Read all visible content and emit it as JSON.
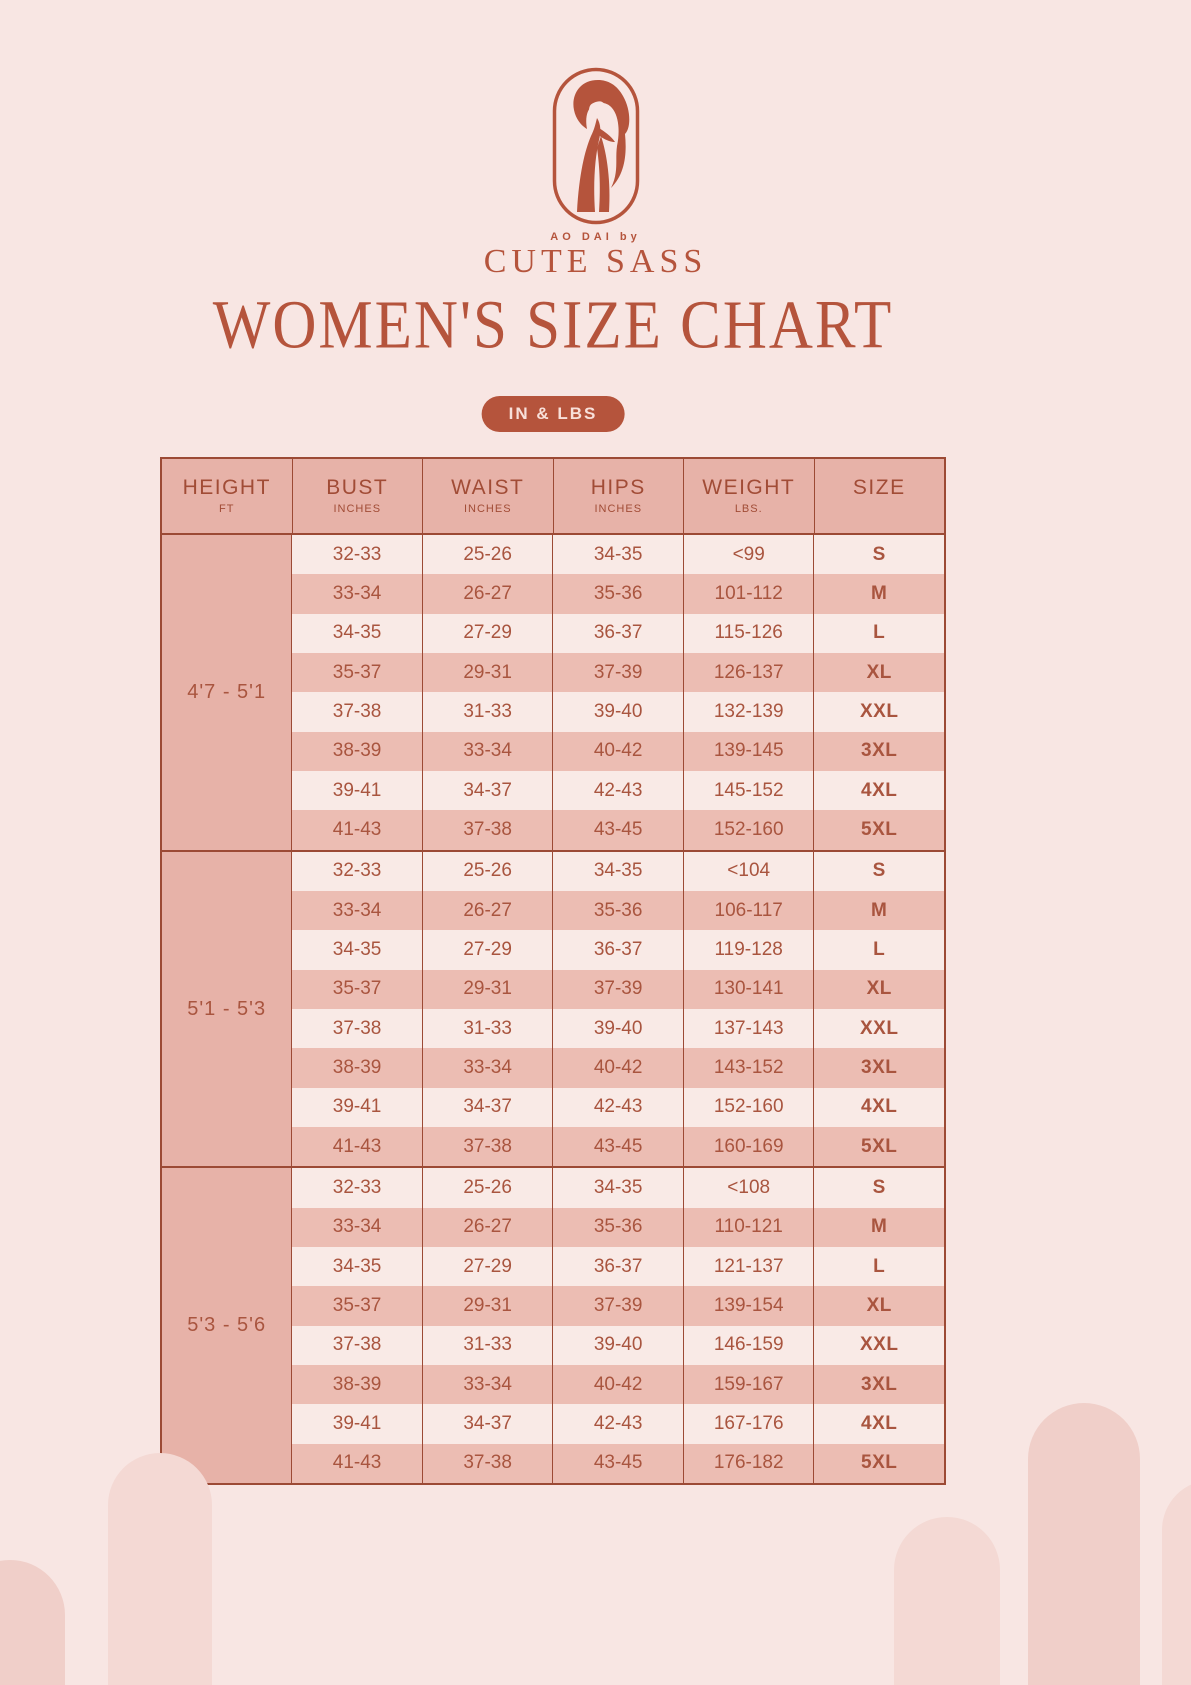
{
  "theme": {
    "background": "#f8e6e3",
    "accent": "#b5543c",
    "title_color": "#b5543c",
    "badge_bg": "#b5543c",
    "badge_text": "#f8e0da",
    "table_border": "#9c4a35",
    "header_bg": "#e7b2a8",
    "header_text": "#a14c36",
    "row_light_bg": "#f9eae6",
    "row_dark_bg": "#ecbdb3",
    "table_text": "#a9553f",
    "arch_light": "#f4d9d4",
    "arch_dark": "#f0cfc9"
  },
  "brand": {
    "tagline": "AO DAI by",
    "name": "CUTE SASS"
  },
  "title": "WOMEN'S SIZE CHART",
  "units_badge": "IN & LBS",
  "table": {
    "columns": [
      {
        "label": "HEIGHT",
        "sublabel": "FT"
      },
      {
        "label": "BUST",
        "sublabel": "INCHES"
      },
      {
        "label": "WAIST",
        "sublabel": "INCHES"
      },
      {
        "label": "HIPS",
        "sublabel": "INCHES"
      },
      {
        "label": "WEIGHT",
        "sublabel": "LBS."
      },
      {
        "label": "SIZE",
        "sublabel": ""
      }
    ],
    "sections": [
      {
        "height": "4'7 - 5'1",
        "rows": [
          [
            "32-33",
            "25-26",
            "34-35",
            "<99",
            "S"
          ],
          [
            "33-34",
            "26-27",
            "35-36",
            "101-112",
            "M"
          ],
          [
            "34-35",
            "27-29",
            "36-37",
            "115-126",
            "L"
          ],
          [
            "35-37",
            "29-31",
            "37-39",
            "126-137",
            "XL"
          ],
          [
            "37-38",
            "31-33",
            "39-40",
            "132-139",
            "XXL"
          ],
          [
            "38-39",
            "33-34",
            "40-42",
            "139-145",
            "3XL"
          ],
          [
            "39-41",
            "34-37",
            "42-43",
            "145-152",
            "4XL"
          ],
          [
            "41-43",
            "37-38",
            "43-45",
            "152-160",
            "5XL"
          ]
        ]
      },
      {
        "height": "5'1 - 5'3",
        "rows": [
          [
            "32-33",
            "25-26",
            "34-35",
            "<104",
            "S"
          ],
          [
            "33-34",
            "26-27",
            "35-36",
            "106-117",
            "M"
          ],
          [
            "34-35",
            "27-29",
            "36-37",
            "119-128",
            "L"
          ],
          [
            "35-37",
            "29-31",
            "37-39",
            "130-141",
            "XL"
          ],
          [
            "37-38",
            "31-33",
            "39-40",
            "137-143",
            "XXL"
          ],
          [
            "38-39",
            "33-34",
            "40-42",
            "143-152",
            "3XL"
          ],
          [
            "39-41",
            "34-37",
            "42-43",
            "152-160",
            "4XL"
          ],
          [
            "41-43",
            "37-38",
            "43-45",
            "160-169",
            "5XL"
          ]
        ]
      },
      {
        "height": "5'3 - 5'6",
        "rows": [
          [
            "32-33",
            "25-26",
            "34-35",
            "<108",
            "S"
          ],
          [
            "33-34",
            "26-27",
            "35-36",
            "110-121",
            "M"
          ],
          [
            "34-35",
            "27-29",
            "36-37",
            "121-137",
            "L"
          ],
          [
            "35-37",
            "29-31",
            "37-39",
            "139-154",
            "XL"
          ],
          [
            "37-38",
            "31-33",
            "39-40",
            "146-159",
            "XXL"
          ],
          [
            "38-39",
            "33-34",
            "40-42",
            "159-167",
            "3XL"
          ],
          [
            "39-41",
            "34-37",
            "42-43",
            "167-176",
            "4XL"
          ],
          [
            "41-43",
            "37-38",
            "43-45",
            "176-182",
            "5XL"
          ]
        ]
      }
    ]
  }
}
